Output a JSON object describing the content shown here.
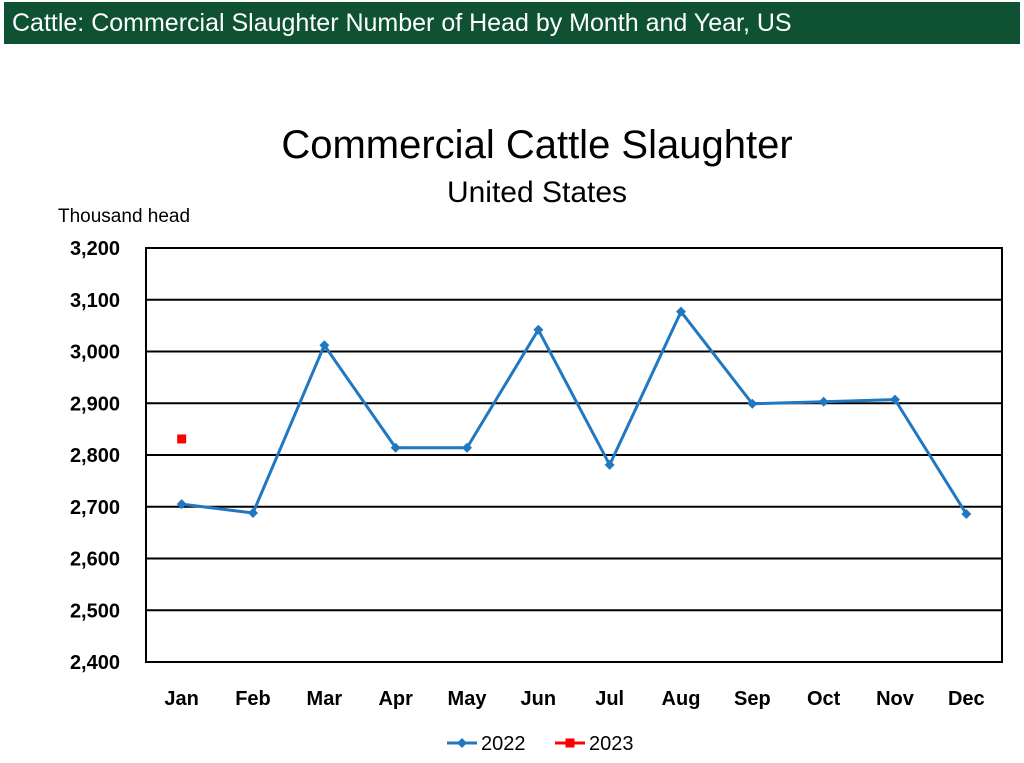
{
  "banner": {
    "title": "Cattle: Commercial Slaughter Number of Head by Month and Year, US"
  },
  "chart_data": {
    "type": "line",
    "title": "Commercial Cattle Slaughter",
    "subtitle": "United States",
    "ylabel": "Thousand  head",
    "xlabel": "",
    "ylim": [
      2400,
      3200
    ],
    "ytick_step": 100,
    "ytick_labels": [
      "2,400",
      "2,500",
      "2,600",
      "2,700",
      "2,800",
      "2,900",
      "3,000",
      "3,100",
      "3,200"
    ],
    "grid": "horizontal",
    "legend_position": "bottom-center",
    "categories": [
      "Jan",
      "Feb",
      "Mar",
      "Apr",
      "May",
      "Jun",
      "Jul",
      "Aug",
      "Sep",
      "Oct",
      "Nov",
      "Dec"
    ],
    "series": [
      {
        "name": "2022",
        "color": "#1f78c1",
        "marker": "diamond",
        "values": [
          2705,
          2688,
          3012,
          2814,
          2814,
          3042,
          2781,
          3077,
          2899,
          2903,
          2907,
          2686
        ]
      },
      {
        "name": "2023",
        "color": "#ff0000",
        "marker": "square",
        "values": [
          2831,
          null,
          null,
          null,
          null,
          null,
          null,
          null,
          null,
          null,
          null,
          null
        ]
      }
    ]
  }
}
